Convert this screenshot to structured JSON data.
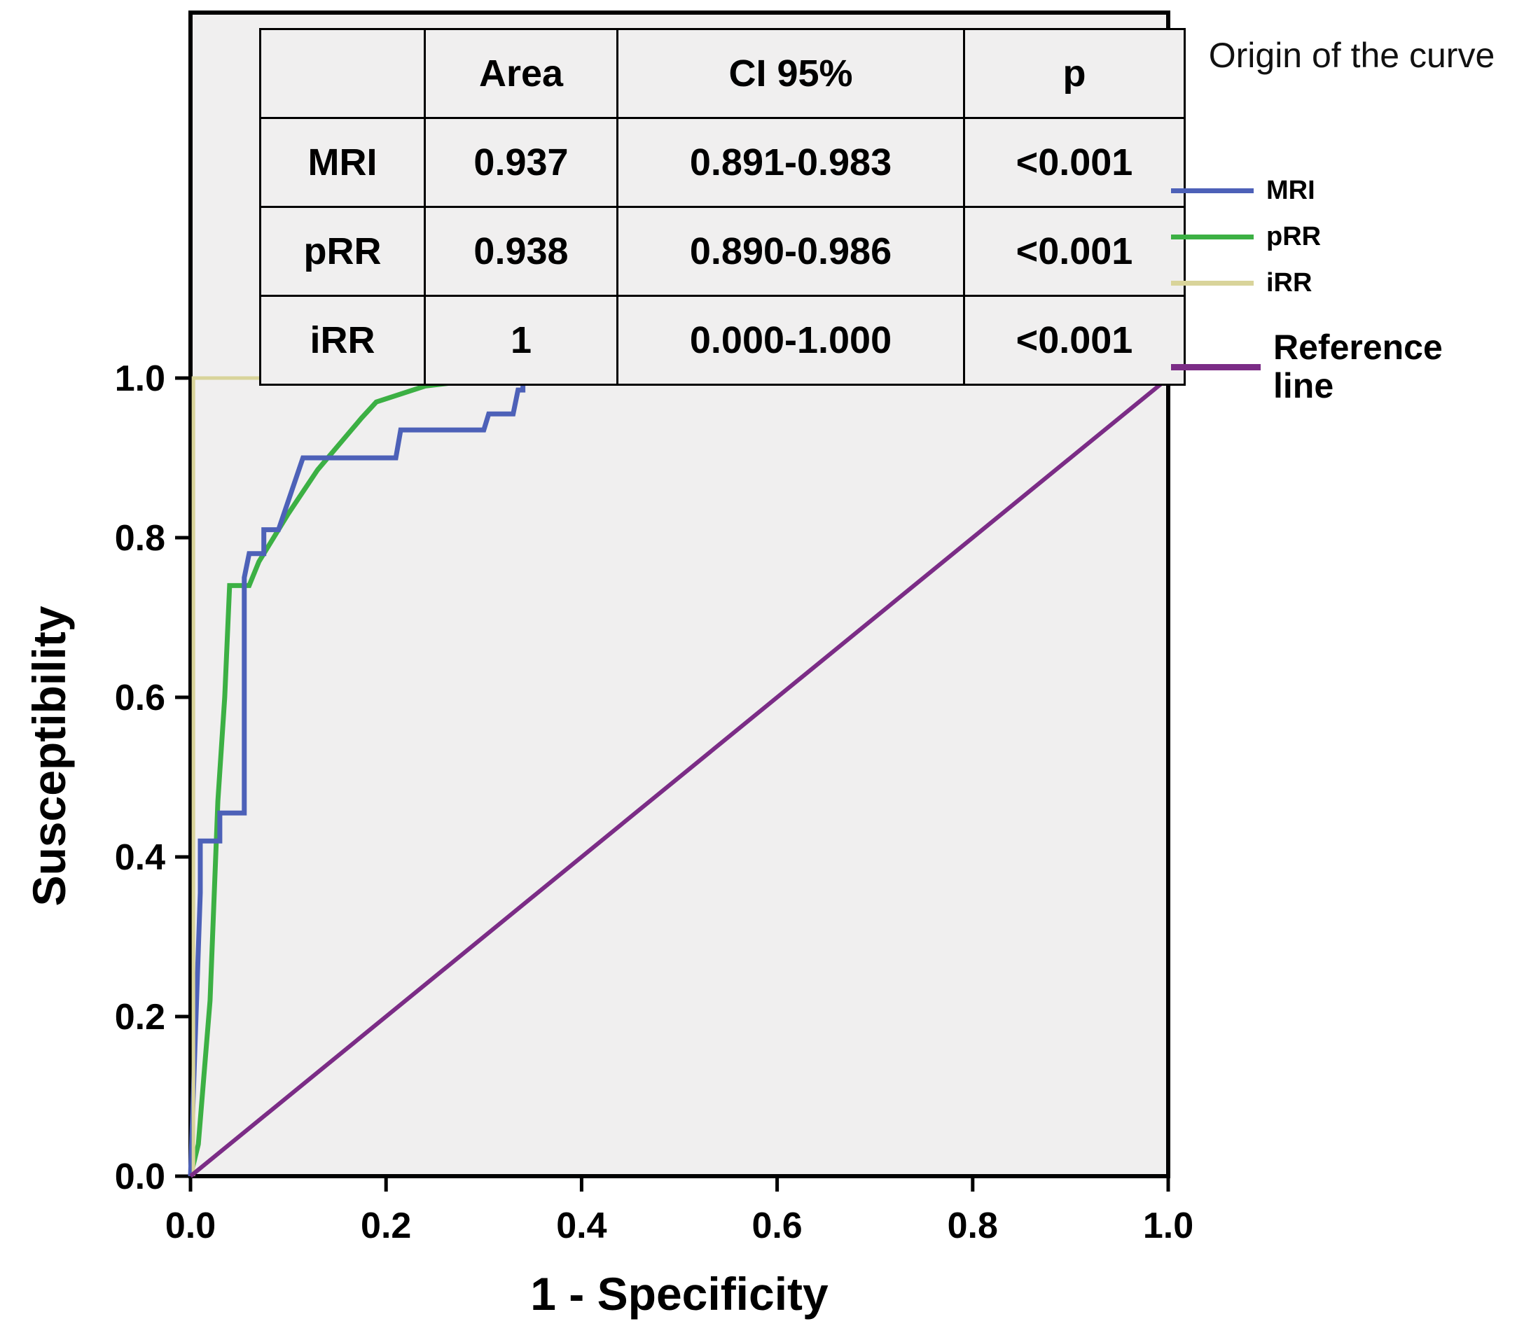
{
  "axes": {
    "x_label": "1 - Specificity",
    "y_label": "Susceptibility"
  },
  "legend": {
    "title": "Origin of the curve"
  },
  "chart_data": {
    "type": "line",
    "subtype": "roc-curve",
    "xlabel": "1 - Specificity",
    "ylabel": "Susceptibility",
    "xlim": [
      0.0,
      1.0
    ],
    "ylim": [
      0.0,
      1.0
    ],
    "grid": false,
    "legend_position": "right",
    "plot_background": "#f0efef",
    "ticks": {
      "values": [
        0.0,
        0.2,
        0.4,
        0.6,
        0.8,
        1.0
      ],
      "labels": [
        "0.0",
        "0.2",
        "0.4",
        "0.6",
        "0.8",
        "1.0"
      ]
    },
    "series": [
      {
        "name": "pRR",
        "color": "#3cb044",
        "width": 7,
        "points": [
          [
            0,
            0
          ],
          [
            0.008,
            0.04
          ],
          [
            0.02,
            0.22
          ],
          [
            0.028,
            0.47
          ],
          [
            0.035,
            0.6
          ],
          [
            0.04,
            0.74
          ],
          [
            0.06,
            0.74
          ],
          [
            0.07,
            0.77
          ],
          [
            0.1,
            0.83
          ],
          [
            0.13,
            0.885
          ],
          [
            0.175,
            0.95
          ],
          [
            0.19,
            0.97
          ],
          [
            0.24,
            0.99
          ],
          [
            0.31,
            1.0
          ],
          [
            1,
            1
          ]
        ]
      },
      {
        "name": "MRI",
        "color": "#4d61b8",
        "width": 7,
        "points": [
          [
            0,
            0
          ],
          [
            0.01,
            0.355
          ],
          [
            0.01,
            0.42
          ],
          [
            0.03,
            0.42
          ],
          [
            0.03,
            0.455
          ],
          [
            0.055,
            0.455
          ],
          [
            0.055,
            0.75
          ],
          [
            0.06,
            0.78
          ],
          [
            0.075,
            0.78
          ],
          [
            0.075,
            0.81
          ],
          [
            0.09,
            0.81
          ],
          [
            0.115,
            0.9
          ],
          [
            0.21,
            0.9
          ],
          [
            0.215,
            0.935
          ],
          [
            0.3,
            0.935
          ],
          [
            0.305,
            0.955
          ],
          [
            0.33,
            0.955
          ],
          [
            0.335,
            0.985
          ],
          [
            0.34,
            0.985
          ],
          [
            0.34,
            1.0
          ],
          [
            1,
            1
          ]
        ]
      },
      {
        "name": "iRR",
        "color": "#d9d49a",
        "width": 5,
        "points": [
          [
            0.003,
            0
          ],
          [
            0.003,
            1.0
          ],
          [
            1,
            1
          ]
        ]
      },
      {
        "name": "Reference line",
        "color": "#7b2c86",
        "width": 6,
        "points": [
          [
            0,
            0
          ],
          [
            1,
            1
          ]
        ]
      }
    ],
    "legend_order": [
      "MRI",
      "pRR",
      "iRR",
      "Reference line"
    ],
    "stats_table": {
      "headers": [
        "Area",
        "CI 95%",
        "p"
      ],
      "rows": [
        {
          "label": "MRI",
          "area": "0.937",
          "ci": "0.891-0.983",
          "p": "<0.001"
        },
        {
          "label": "pRR",
          "area": "0.938",
          "ci": "0.890-0.986",
          "p": "<0.001"
        },
        {
          "label": "iRR",
          "area": "1",
          "ci": "0.000-1.000",
          "p": "<0.001"
        }
      ]
    }
  }
}
